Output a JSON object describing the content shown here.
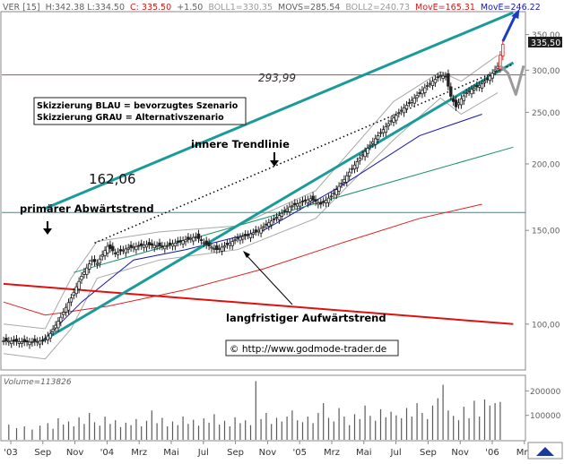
{
  "header": {
    "symbol": "VER [15]",
    "high": "H:342.38",
    "low": "L:334.50",
    "close": "C: 335.50",
    "change": "+1.50",
    "boll1": "BOLL1=330.35",
    "movs": "MOVS=285.54",
    "boll2": "BOLL2=240.73",
    "move1": "MovE=165.31",
    "move2": "MovE=246.22"
  },
  "annotations": {
    "level_29399": "293,99",
    "level_16206": "162,06",
    "legend_blue": "Skizzierung BLAU = bevorzugtes Szenario",
    "legend_grey": "Skizzierung GRAU = Alternativszenario",
    "inner_trend": "innere Trendlinie",
    "primary_down": "primärer Abwärtstrend",
    "long_up": "langfristiger Aufwärtstrend",
    "copyright": "© http://www.godmode-trader.de",
    "last_price": "335,50",
    "volume_label": "Volume=113826"
  },
  "colors": {
    "teal": "#1a9a9a",
    "red": "#e02020",
    "blue": "#1515b0",
    "green": "#169060",
    "grey": "#a8a8a8",
    "dark": "#404040"
  },
  "chart_data": {
    "type": "candlestick",
    "price_axis": {
      "ticks": [
        100,
        150,
        200,
        250,
        300,
        350
      ],
      "tick_labels": [
        "100,00",
        "150,00",
        "200,00",
        "250,00",
        "300,00",
        "350,00"
      ],
      "scale": "log",
      "range": [
        82,
        385
      ]
    },
    "volume_axis": {
      "ticks": [
        100000,
        200000
      ],
      "tick_labels": [
        "100000",
        "200000"
      ],
      "range": [
        0,
        260000
      ]
    },
    "x_tick_labels": [
      "'03",
      "Sep",
      "Nov",
      "'04",
      "Mrz",
      "Mai",
      "Jul",
      "Sep",
      "Nov",
      "'05",
      "Mrz",
      "Mai",
      "Jul",
      "Sep",
      "Nov",
      "'06",
      "Mrz"
    ],
    "horizontal_levels": [
      293.99,
      162.06
    ],
    "price_path": [
      [
        0,
        93
      ],
      [
        10,
        92.5
      ],
      [
        15,
        93
      ],
      [
        18,
        96
      ],
      [
        22,
        103
      ],
      [
        26,
        112
      ],
      [
        30,
        123
      ],
      [
        34,
        132
      ],
      [
        36,
        130
      ],
      [
        40,
        140
      ],
      [
        43,
        136
      ],
      [
        48,
        139
      ],
      [
        55,
        141
      ],
      [
        62,
        140
      ],
      [
        68,
        143
      ],
      [
        74,
        146
      ],
      [
        78,
        141
      ],
      [
        82,
        138
      ],
      [
        86,
        141
      ],
      [
        90,
        145
      ],
      [
        94,
        147
      ],
      [
        98,
        150
      ],
      [
        102,
        155
      ],
      [
        106,
        160
      ],
      [
        110,
        166
      ],
      [
        114,
        169
      ],
      [
        118,
        172
      ],
      [
        122,
        168
      ],
      [
        126,
        174
      ],
      [
        130,
        184
      ],
      [
        134,
        196
      ],
      [
        138,
        208
      ],
      [
        142,
        220
      ],
      [
        146,
        232
      ],
      [
        150,
        244
      ],
      [
        154,
        255
      ],
      [
        158,
        266
      ],
      [
        162,
        278
      ],
      [
        165,
        286
      ],
      [
        168,
        293
      ],
      [
        170,
        292
      ],
      [
        172,
        268
      ],
      [
        174,
        256
      ],
      [
        176,
        265
      ],
      [
        178,
        272
      ],
      [
        180,
        276
      ],
      [
        182,
        279
      ],
      [
        184,
        283
      ],
      [
        186,
        289
      ],
      [
        188,
        296
      ],
      [
        190,
        305
      ],
      [
        192,
        335.5
      ]
    ],
    "volume_bars": [
      [
        2,
        62000
      ],
      [
        5,
        48000
      ],
      [
        8,
        55000
      ],
      [
        11,
        42000
      ],
      [
        14,
        58000
      ],
      [
        17,
        68000
      ],
      [
        19,
        45000
      ],
      [
        21,
        88000
      ],
      [
        23,
        62000
      ],
      [
        25,
        75000
      ],
      [
        27,
        55000
      ],
      [
        29,
        92000
      ],
      [
        31,
        65000
      ],
      [
        33,
        110000
      ],
      [
        35,
        72000
      ],
      [
        37,
        58000
      ],
      [
        39,
        95000
      ],
      [
        41,
        65000
      ],
      [
        43,
        80000
      ],
      [
        45,
        52000
      ],
      [
        47,
        70000
      ],
      [
        49,
        60000
      ],
      [
        51,
        85000
      ],
      [
        53,
        55000
      ],
      [
        55,
        78000
      ],
      [
        57,
        120000
      ],
      [
        59,
        68000
      ],
      [
        61,
        90000
      ],
      [
        63,
        55000
      ],
      [
        65,
        75000
      ],
      [
        67,
        60000
      ],
      [
        69,
        95000
      ],
      [
        71,
        65000
      ],
      [
        73,
        82000
      ],
      [
        75,
        58000
      ],
      [
        77,
        88000
      ],
      [
        79,
        70000
      ],
      [
        81,
        105000
      ],
      [
        83,
        62000
      ],
      [
        85,
        78000
      ],
      [
        87,
        55000
      ],
      [
        89,
        92000
      ],
      [
        91,
        68000
      ],
      [
        93,
        80000
      ],
      [
        95,
        60000
      ],
      [
        97,
        240000
      ],
      [
        99,
        85000
      ],
      [
        101,
        110000
      ],
      [
        103,
        65000
      ],
      [
        105,
        90000
      ],
      [
        107,
        75000
      ],
      [
        109,
        95000
      ],
      [
        111,
        120000
      ],
      [
        113,
        80000
      ],
      [
        115,
        72000
      ],
      [
        117,
        95000
      ],
      [
        119,
        68000
      ],
      [
        121,
        110000
      ],
      [
        123,
        150000
      ],
      [
        125,
        90000
      ],
      [
        127,
        75000
      ],
      [
        129,
        130000
      ],
      [
        131,
        95000
      ],
      [
        133,
        60000
      ],
      [
        135,
        105000
      ],
      [
        137,
        85000
      ],
      [
        139,
        140000
      ],
      [
        141,
        98000
      ],
      [
        143,
        78000
      ],
      [
        145,
        125000
      ],
      [
        147,
        92000
      ],
      [
        149,
        115000
      ],
      [
        151,
        100000
      ],
      [
        153,
        88000
      ],
      [
        155,
        130000
      ],
      [
        157,
        95000
      ],
      [
        159,
        150000
      ],
      [
        161,
        110000
      ],
      [
        163,
        85000
      ],
      [
        165,
        140000
      ],
      [
        167,
        170000
      ],
      [
        169,
        225000
      ],
      [
        171,
        120000
      ],
      [
        173,
        98000
      ],
      [
        175,
        80000
      ],
      [
        177,
        135000
      ],
      [
        179,
        88000
      ],
      [
        181,
        160000
      ],
      [
        183,
        95000
      ],
      [
        185,
        165000
      ],
      [
        187,
        140000
      ],
      [
        189,
        150000
      ],
      [
        191,
        155000
      ]
    ],
    "lines": {
      "upper_channel": [
        [
          16,
          165
        ],
        [
          196,
          385
        ]
      ],
      "lower_channel": [
        [
          15,
          93
        ],
        [
          196,
          310
        ]
      ],
      "inner_trend": [
        [
          35,
          142
        ],
        [
          196,
          308
        ]
      ],
      "primary_downtrend": [
        [
          0,
          119
        ],
        [
          196,
          100
        ]
      ],
      "green_trend": [
        [
          27,
          125
        ],
        [
          196,
          215
        ]
      ],
      "move_long": [
        [
          0,
          110
        ],
        [
          16,
          104
        ],
        [
          40,
          108
        ],
        [
          70,
          116
        ],
        [
          100,
          127
        ],
        [
          130,
          142
        ],
        [
          160,
          158
        ],
        [
          184,
          168
        ]
      ],
      "move_short": [
        [
          16,
          94
        ],
        [
          30,
          110
        ],
        [
          50,
          132
        ],
        [
          70,
          138
        ],
        [
          100,
          150
        ],
        [
          130,
          182
        ],
        [
          160,
          226
        ],
        [
          184,
          248
        ]
      ],
      "boll_upper": [
        [
          0,
          100
        ],
        [
          16,
          98
        ],
        [
          26,
          122
        ],
        [
          36,
          143
        ],
        [
          60,
          149
        ],
        [
          90,
          153
        ],
        [
          120,
          178
        ],
        [
          150,
          262
        ],
        [
          168,
          298
        ],
        [
          176,
          286
        ],
        [
          190,
          320
        ]
      ],
      "boll_lower": [
        [
          0,
          88
        ],
        [
          16,
          86
        ],
        [
          26,
          98
        ],
        [
          36,
          122
        ],
        [
          60,
          132
        ],
        [
          90,
          138
        ],
        [
          120,
          158
        ],
        [
          150,
          222
        ],
        [
          168,
          266
        ],
        [
          176,
          248
        ],
        [
          190,
          272
        ]
      ]
    },
    "scenarios": {
      "blue": [
        [
          192,
          340
        ],
        [
          197,
          382
        ]
      ],
      "grey": [
        [
          191,
          306
        ],
        [
          194,
          296
        ],
        [
          197,
          270
        ],
        [
          200,
          306
        ]
      ]
    }
  }
}
